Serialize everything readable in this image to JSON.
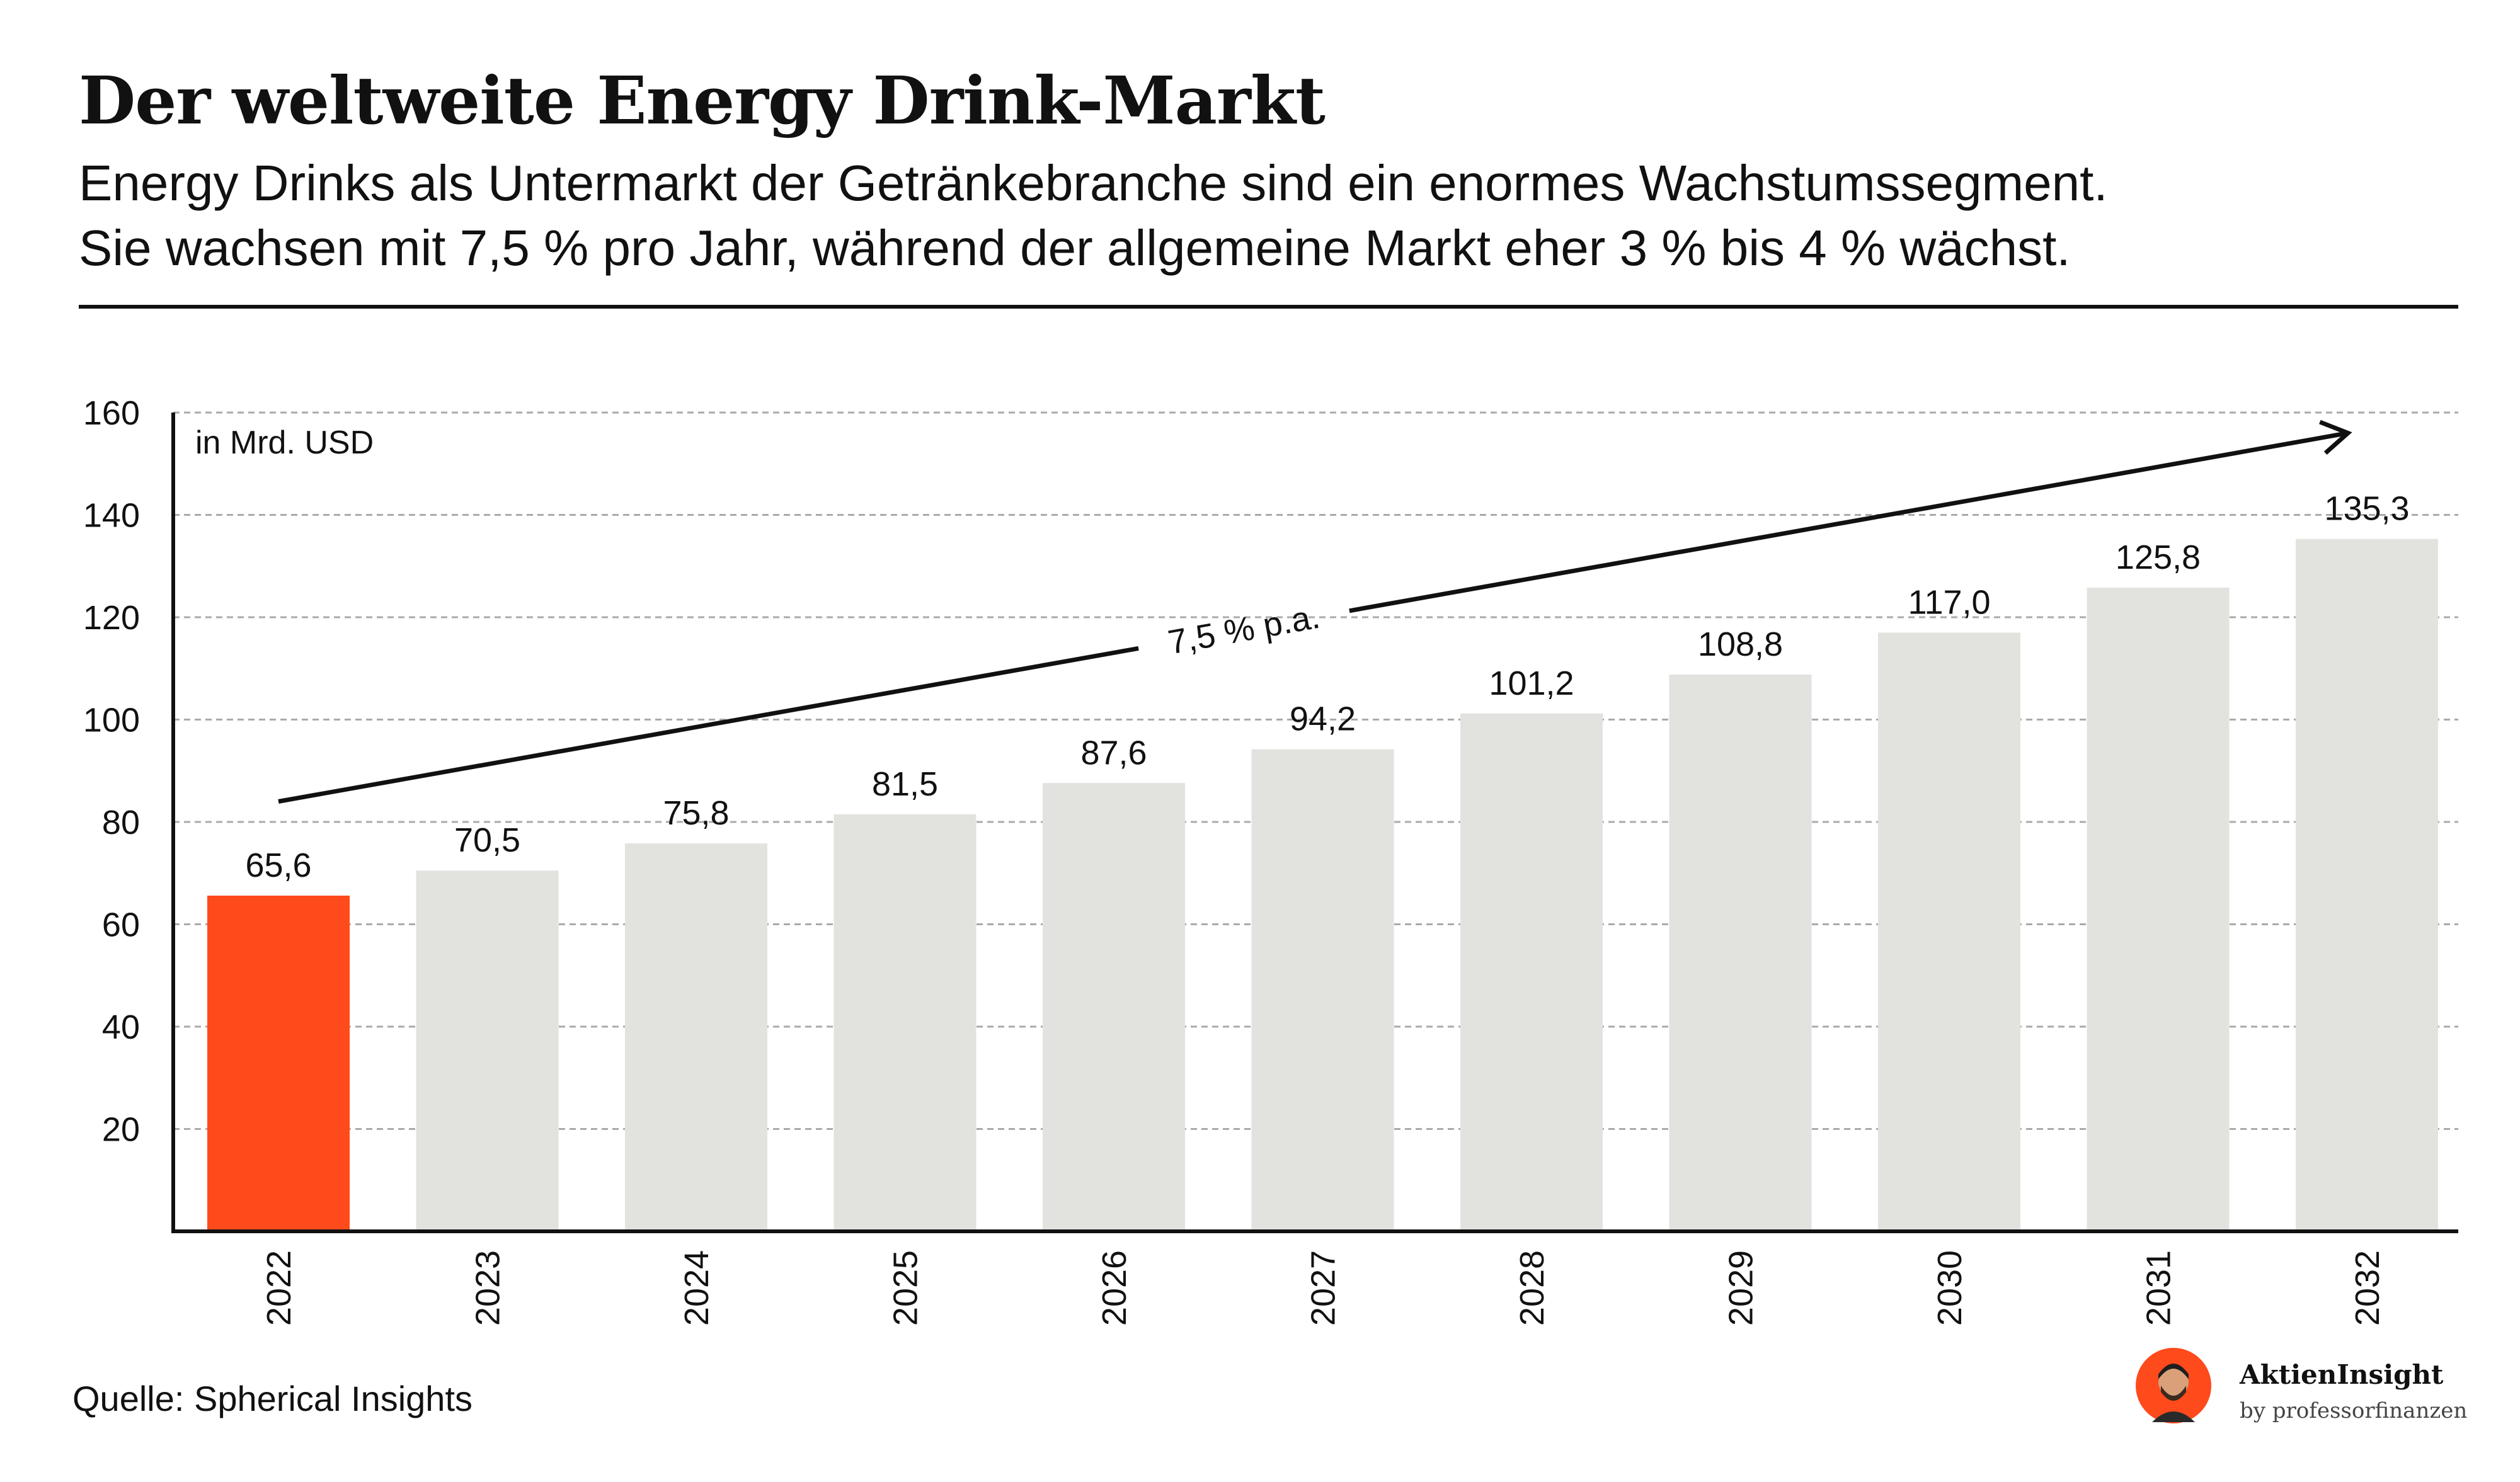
{
  "header": {
    "title": "Der weltweite Energy Drink-Markt",
    "subtitle_line1": "Energy Drinks als Untermarkt der Getränkebranche sind ein enormes Wachstumssegment.",
    "subtitle_line2": "Sie wachsen mit 7,5 % pro Jahr, während der allgemeine Markt eher 3 % bis 4 % wächst."
  },
  "chart_data": {
    "type": "bar",
    "unit_label": "in Mrd. USD",
    "categories": [
      "2022",
      "2023",
      "2024",
      "2025",
      "2026",
      "2027",
      "2028",
      "2029",
      "2030",
      "2031",
      "2032"
    ],
    "values": [
      65.6,
      70.5,
      75.8,
      81.5,
      87.6,
      94.2,
      101.2,
      108.8,
      117.0,
      125.8,
      135.3
    ],
    "value_labels": [
      "65,6",
      "70,5",
      "75,8",
      "81,5",
      "87,6",
      "94,2",
      "101,2",
      "108,8",
      "117,0",
      "125,8",
      "135,3"
    ],
    "yticks": [
      20,
      40,
      60,
      80,
      100,
      120,
      140,
      160
    ],
    "ylim": [
      0,
      160
    ],
    "grid": true,
    "highlight_index": 0,
    "colors": {
      "highlight": "#ff4a1c",
      "bar": "#e2e2df",
      "axis": "#111111",
      "grid": "#aaaaaa"
    },
    "trend": {
      "label": "7,5 % p.a.",
      "from": [
        0,
        84
      ],
      "to": [
        10,
        156
      ]
    },
    "xlabel": "",
    "ylabel": ""
  },
  "footer": {
    "source": "Quelle: Spherical Insights",
    "brand_name": "AktienInsight",
    "brand_by": "by professorfinanzen",
    "brand_logo": "avatar-icon"
  }
}
